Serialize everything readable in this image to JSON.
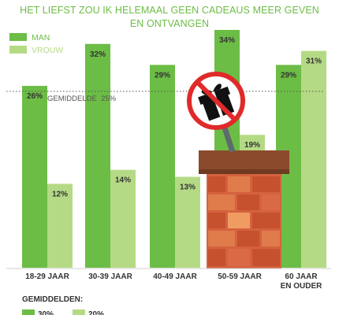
{
  "title_lines": [
    "HET LIEFST ZOU IK HELEMAAL GEEN CADEAUS MEER GEVEN",
    "EN ONTVANGEN"
  ],
  "legend": {
    "man": "MAN",
    "vrouw": "VROUW"
  },
  "average_line_label": "GEMIDDELDE  25%",
  "averages_heading": "GEMIDDELDEN:",
  "average_values": {
    "man": "30%",
    "vrouw": "20%"
  },
  "colors": {
    "man": "#6cbd45",
    "vrouw": "#b5da85",
    "title": "#6cbd45",
    "axis_text": "#333333"
  },
  "icon": "no-gifts-sign-icon",
  "chart_data": {
    "type": "bar",
    "title": "HET LIEFST ZOU IK HELEMAAL GEEN CADEAUS MEER GEVEN EN ONTVANGEN",
    "categories": [
      "18-29 JAAR",
      "30-39 JAAR",
      "40-49 JAAR",
      "50-59 JAAR",
      "60 JAAR EN OUDER"
    ],
    "category_lines": [
      [
        "18-29 JAAR"
      ],
      [
        "30-39 JAAR"
      ],
      [
        "40-49 JAAR"
      ],
      [
        "50-59 JAAR"
      ],
      [
        "60 JAAR",
        "EN OUDER"
      ]
    ],
    "series": [
      {
        "name": "MAN",
        "values": [
          26,
          32,
          29,
          34,
          29
        ],
        "labels": [
          "26%",
          "32%",
          "29%",
          "34%",
          "29%"
        ]
      },
      {
        "name": "VROUW",
        "values": [
          12,
          14,
          13,
          19,
          31
        ],
        "labels": [
          "12%",
          "14%",
          "13%",
          "19%",
          "31%"
        ]
      }
    ],
    "reference_line": {
      "value": 25,
      "style": "dotted"
    },
    "ylim": [
      0,
      34
    ],
    "grid": false,
    "legend_position": "top-left"
  }
}
